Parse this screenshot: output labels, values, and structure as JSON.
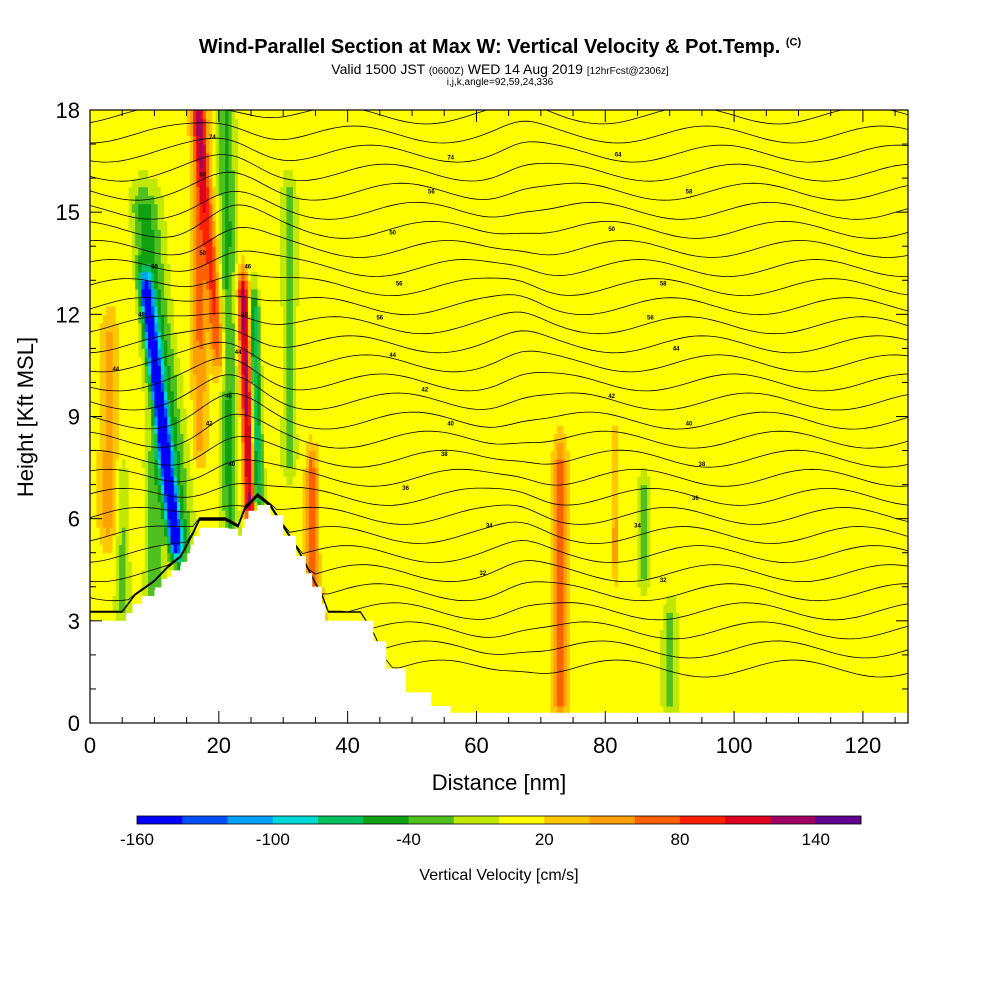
{
  "header": {
    "title": "Wind-Parallel Section at Max W: Vertical Velocity & Pot.Temp.",
    "copyright": "(C)",
    "valid_prefix": "Valid 1500 JST",
    "valid_utc": "(0600Z)",
    "valid_date": "WED 14 Aug 2019",
    "forecast": "[12hrFcst@2306z]",
    "params": "i,j,k,angle=92,59,24,336"
  },
  "chart_data": {
    "type": "heatmap",
    "xlabel": "Distance [nm]",
    "ylabel": "Height [Kft MSL]",
    "xlim": [
      0,
      127
    ],
    "ylim": [
      0,
      18
    ],
    "x_ticks": [
      "0",
      "20",
      "40",
      "60",
      "80",
      "100",
      "120"
    ],
    "y_ticks": [
      "0",
      "3",
      "6",
      "9",
      "12",
      "15",
      "18"
    ],
    "x_tick_values": [
      0,
      20,
      40,
      60,
      80,
      100,
      120
    ],
    "y_tick_values": [
      0,
      3,
      6,
      9,
      12,
      15,
      18
    ],
    "colorbar": {
      "label": "Vertical Velocity [cm/s]",
      "tick_labels": [
        "-160",
        "-100",
        "-40",
        "20",
        "80",
        "140"
      ],
      "tick_values": [
        -160,
        -100,
        -40,
        20,
        80,
        140
      ],
      "range": [
        -160,
        160
      ],
      "colors": [
        "#0000ff",
        "#0050ff",
        "#00a0ff",
        "#00d8d8",
        "#00c060",
        "#10a010",
        "#50c020",
        "#c0e800",
        "#ffff00",
        "#ffc800",
        "#ffa000",
        "#ff6000",
        "#ff2000",
        "#e00020",
        "#a00060",
        "#600090"
      ]
    },
    "terrain_kft": [
      [
        0,
        3.0
      ],
      [
        5,
        3.0
      ],
      [
        7,
        3.5
      ],
      [
        10,
        3.9
      ],
      [
        12,
        4.3
      ],
      [
        14,
        4.6
      ],
      [
        15.5,
        5.1
      ],
      [
        17,
        5.7
      ],
      [
        21,
        5.7
      ],
      [
        23,
        5.5
      ],
      [
        24,
        6.0
      ],
      [
        26,
        6.4
      ],
      [
        28,
        6.1
      ],
      [
        30,
        5.5
      ],
      [
        32,
        4.9
      ],
      [
        33.5,
        4.4
      ],
      [
        34.5,
        4.0
      ],
      [
        36,
        3.5
      ],
      [
        36.5,
        3.0
      ],
      [
        42,
        3.0
      ],
      [
        44,
        2.4
      ],
      [
        46,
        1.6
      ],
      [
        49,
        0.9
      ],
      [
        53,
        0.5
      ],
      [
        56,
        0.3
      ],
      [
        127,
        0.3
      ]
    ],
    "theta_contour_labels": [
      {
        "text": "74",
        "x": 56,
        "y": 16.6
      },
      {
        "text": "64",
        "x": 82,
        "y": 16.7
      },
      {
        "text": "56",
        "x": 53,
        "y": 15.6
      },
      {
        "text": "58",
        "x": 93,
        "y": 15.6
      },
      {
        "text": "50",
        "x": 47,
        "y": 14.4
      },
      {
        "text": "50",
        "x": 81,
        "y": 14.5
      },
      {
        "text": "56",
        "x": 48,
        "y": 12.9
      },
      {
        "text": "58",
        "x": 89,
        "y": 12.9
      },
      {
        "text": "56",
        "x": 45,
        "y": 11.9
      },
      {
        "text": "56",
        "x": 87,
        "y": 11.9
      },
      {
        "text": "44",
        "x": 47,
        "y": 10.8
      },
      {
        "text": "44",
        "x": 91,
        "y": 11.0
      },
      {
        "text": "42",
        "x": 52,
        "y": 9.8
      },
      {
        "text": "42",
        "x": 81,
        "y": 9.6
      },
      {
        "text": "40",
        "x": 56,
        "y": 8.8
      },
      {
        "text": "40",
        "x": 93,
        "y": 8.8
      },
      {
        "text": "38",
        "x": 55,
        "y": 7.9
      },
      {
        "text": "38",
        "x": 95,
        "y": 7.6
      },
      {
        "text": "36",
        "x": 49,
        "y": 6.9
      },
      {
        "text": "36",
        "x": 94,
        "y": 6.6
      },
      {
        "text": "34",
        "x": 62,
        "y": 5.8
      },
      {
        "text": "34",
        "x": 85,
        "y": 5.8
      },
      {
        "text": "32",
        "x": 61,
        "y": 4.4
      },
      {
        "text": "32",
        "x": 89,
        "y": 4.2
      },
      {
        "text": "74",
        "x": 19,
        "y": 17.2
      },
      {
        "text": "58",
        "x": 17.5,
        "y": 16.1
      },
      {
        "text": "50",
        "x": 17.5,
        "y": 13.8
      },
      {
        "text": "50",
        "x": 10,
        "y": 13.4
      },
      {
        "text": "46",
        "x": 24.5,
        "y": 13.4
      },
      {
        "text": "48",
        "x": 8,
        "y": 12.0
      },
      {
        "text": "48",
        "x": 24,
        "y": 12.0
      },
      {
        "text": "44",
        "x": 23,
        "y": 10.9
      },
      {
        "text": "44",
        "x": 4,
        "y": 10.4
      },
      {
        "text": "46",
        "x": 21.5,
        "y": 9.6
      },
      {
        "text": "42",
        "x": 18.5,
        "y": 8.8
      },
      {
        "text": "40",
        "x": 22,
        "y": 7.6
      }
    ]
  }
}
